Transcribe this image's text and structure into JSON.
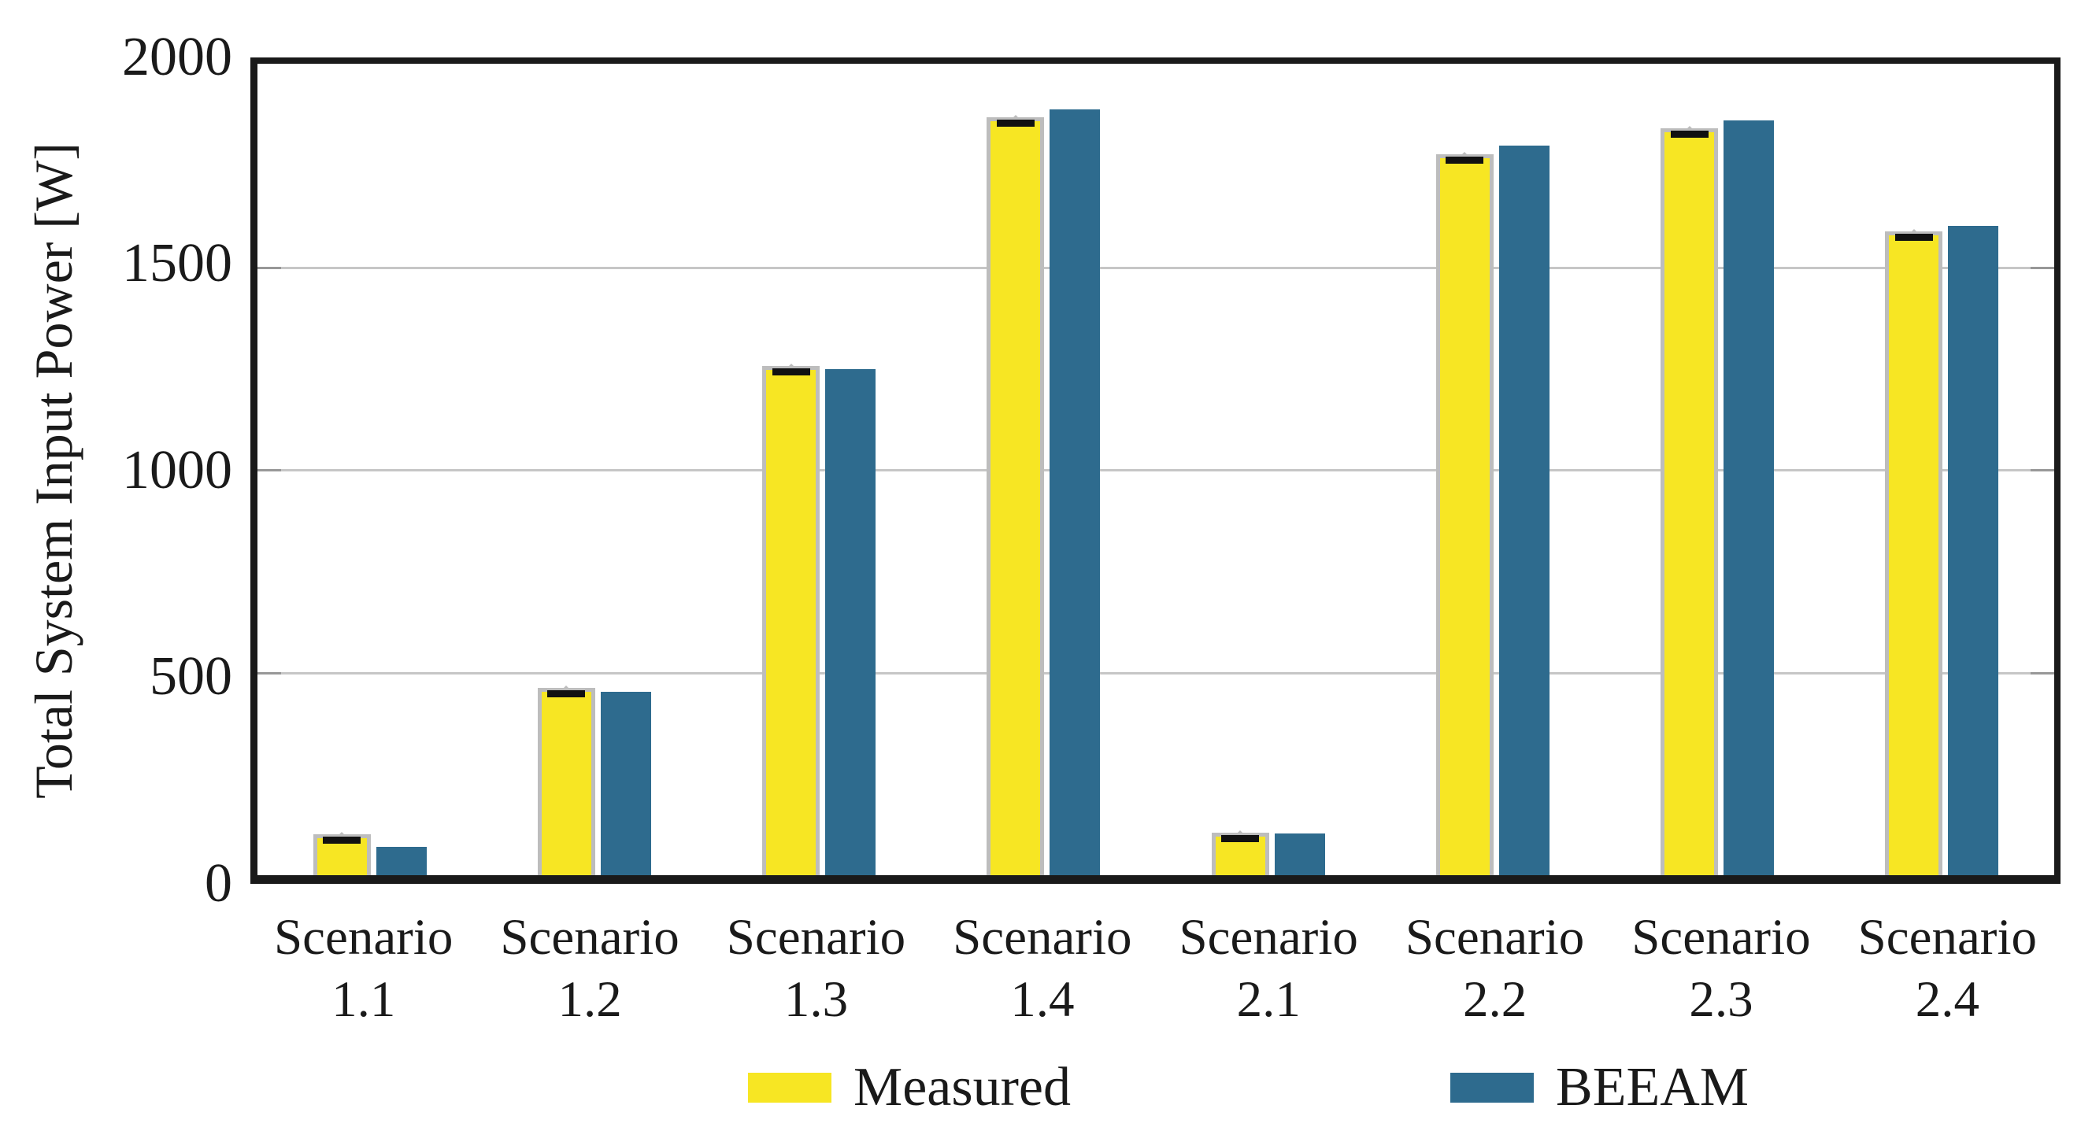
{
  "chart_data": {
    "type": "bar",
    "title": "",
    "xlabel": "",
    "ylabel": "Total System Input Power [W]",
    "ylim": [
      0,
      2000
    ],
    "yticks": [
      0,
      500,
      1000,
      1500,
      2000
    ],
    "grid": "horizontal-at-500-1000-1500",
    "legend_position": "bottom",
    "categories": [
      "Scenario 1.1",
      "Scenario 1.2",
      "Scenario 1.3",
      "Scenario 1.4",
      "Scenario 2.1",
      "Scenario 2.2",
      "Scenario 2.3",
      "Scenario 2.4"
    ],
    "series": [
      {
        "name": "Measured",
        "color": "#f7e623",
        "edge_color": "#bdbdbd",
        "error_caps": true,
        "error_cap_color": "#111111",
        "values": [
          100,
          462,
          1256,
          1868,
          104,
          1776,
          1841,
          1587
        ]
      },
      {
        "name": "BEEAM",
        "color": "#2e6b8e",
        "edge_color": null,
        "error_caps": false,
        "error_cap_color": null,
        "values": [
          70,
          452,
          1247,
          1888,
          103,
          1799,
          1861,
          1600
        ]
      }
    ]
  },
  "style_colors": {
    "frame": "#1a1a1a",
    "gridline": "#c6c6c6",
    "grid_tick": "#989898",
    "text": "#1a1a1a",
    "background": "#ffffff"
  },
  "legend": {
    "entries": [
      "Measured",
      "BEEAM"
    ]
  }
}
